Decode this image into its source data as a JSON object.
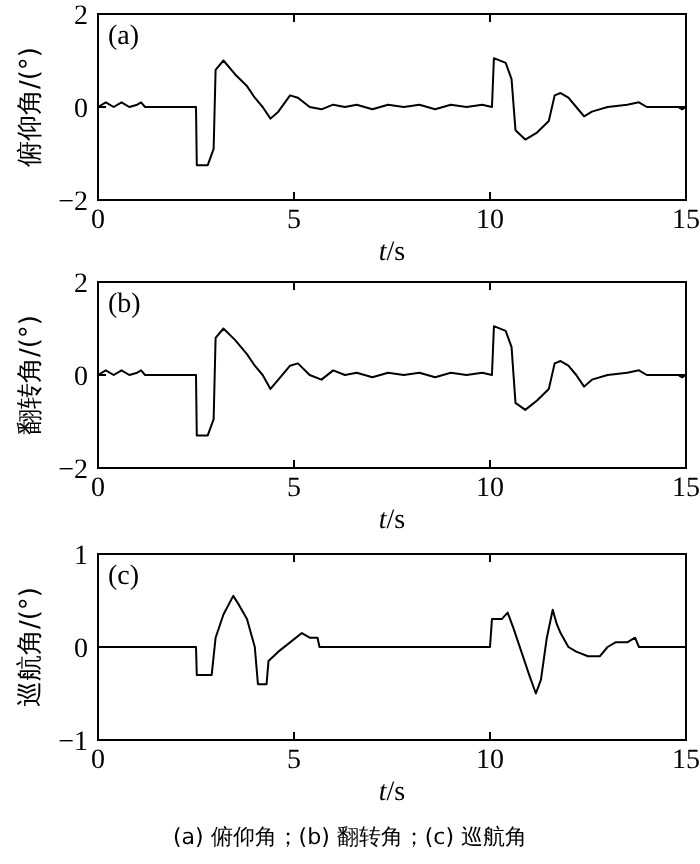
{
  "chart_data": [
    {
      "type": "line",
      "xlabel": "t/s",
      "ylabel": "俯仰角/(°)",
      "annotations": [
        "(a)"
      ],
      "xlim": [
        0,
        15
      ],
      "xticks": [
        0,
        5,
        10,
        15
      ],
      "ylim": [
        -2,
        2
      ],
      "yticks": [
        -2,
        0,
        2
      ],
      "grid": false,
      "series": [
        {
          "color": "#000000",
          "x": [
            0,
            0.2,
            0.4,
            0.6,
            0.8,
            1.0,
            1.1,
            1.2,
            2.5,
            2.52,
            2.8,
            2.95,
            3.0,
            3.2,
            3.5,
            3.8,
            4.0,
            4.2,
            4.4,
            4.6,
            4.9,
            5.1,
            5.4,
            5.7,
            6.0,
            6.3,
            6.6,
            7.0,
            7.4,
            7.8,
            8.2,
            8.6,
            9.0,
            9.4,
            9.8,
            10.05,
            10.1,
            10.4,
            10.55,
            10.65,
            10.9,
            11.2,
            11.5,
            11.65,
            11.8,
            12.0,
            12.2,
            12.4,
            12.6,
            13.0,
            13.5,
            13.8,
            14.0,
            14.8,
            14.9,
            15
          ],
          "values": [
            0,
            0.1,
            0,
            0.1,
            0,
            0.05,
            0.1,
            0,
            0,
            -1.25,
            -1.25,
            -0.9,
            0.8,
            1.0,
            0.7,
            0.45,
            0.2,
            0,
            -0.25,
            -0.1,
            0.25,
            0.2,
            0,
            -0.05,
            0.05,
            0,
            0.05,
            -0.05,
            0.05,
            0,
            0.05,
            -0.05,
            0.05,
            0,
            0.05,
            0,
            1.05,
            0.95,
            0.6,
            -0.5,
            -0.7,
            -0.55,
            -0.3,
            0.25,
            0.3,
            0.2,
            0,
            -0.2,
            -0.1,
            0,
            0.05,
            0.1,
            0,
            0,
            -0.05,
            0
          ]
        }
      ]
    },
    {
      "type": "line",
      "xlabel": "t/s",
      "ylabel": "翻转角/(°)",
      "annotations": [
        "(b)"
      ],
      "xlim": [
        0,
        15
      ],
      "xticks": [
        0,
        5,
        10,
        15
      ],
      "ylim": [
        -2,
        2
      ],
      "yticks": [
        -2,
        0,
        2
      ],
      "grid": false,
      "series": [
        {
          "color": "#000000",
          "x": [
            0,
            0.2,
            0.4,
            0.6,
            0.8,
            1.0,
            1.1,
            1.2,
            2.5,
            2.52,
            2.8,
            2.95,
            3.0,
            3.2,
            3.5,
            3.8,
            4.0,
            4.2,
            4.4,
            4.6,
            4.9,
            5.1,
            5.4,
            5.7,
            6.0,
            6.3,
            6.6,
            7.0,
            7.4,
            7.8,
            8.2,
            8.6,
            9.0,
            9.4,
            9.8,
            10.05,
            10.1,
            10.4,
            10.55,
            10.65,
            10.9,
            11.2,
            11.5,
            11.65,
            11.8,
            12.0,
            12.2,
            12.4,
            12.6,
            13.0,
            13.5,
            13.8,
            14.0,
            14.8,
            14.9,
            15
          ],
          "values": [
            0,
            0.1,
            0,
            0.1,
            0,
            0.05,
            0.1,
            0,
            0,
            -1.3,
            -1.3,
            -0.95,
            0.8,
            1.0,
            0.75,
            0.45,
            0.2,
            0,
            -0.3,
            -0.1,
            0.2,
            0.25,
            0,
            -0.1,
            0.1,
            0,
            0.05,
            -0.05,
            0.05,
            0,
            0.05,
            -0.05,
            0.05,
            0,
            0.05,
            0,
            1.05,
            0.95,
            0.6,
            -0.6,
            -0.75,
            -0.55,
            -0.3,
            0.25,
            0.3,
            0.2,
            0,
            -0.25,
            -0.1,
            0,
            0.05,
            0.1,
            0,
            0,
            -0.05,
            0
          ]
        }
      ]
    },
    {
      "type": "line",
      "xlabel": "t/s",
      "ylabel": "巡航角/(°)",
      "annotations": [
        "(c)",
        "(a) 俯仰角；(b) 翻转角；(c) 巡航角"
      ],
      "xlim": [
        0,
        15
      ],
      "xticks": [
        0,
        5,
        10,
        15
      ],
      "ylim": [
        -1,
        1
      ],
      "yticks": [
        -1,
        0,
        1
      ],
      "grid": false,
      "series": [
        {
          "color": "#000000",
          "x": [
            0,
            2.5,
            2.52,
            2.9,
            3.0,
            3.2,
            3.45,
            3.6,
            3.8,
            4.0,
            4.08,
            4.3,
            4.35,
            4.6,
            4.9,
            5.2,
            5.4,
            5.6,
            5.65,
            10.0,
            10.05,
            10.3,
            10.45,
            10.6,
            10.8,
            11.0,
            11.17,
            11.3,
            11.45,
            11.6,
            11.7,
            11.8,
            12.0,
            12.2,
            12.5,
            12.8,
            13.0,
            13.2,
            13.5,
            13.7,
            13.8,
            15
          ],
          "values": [
            0,
            0,
            -0.3,
            -0.3,
            0.1,
            0.35,
            0.55,
            0.45,
            0.3,
            0,
            -0.4,
            -0.4,
            -0.15,
            -0.05,
            0.05,
            0.15,
            0.1,
            0.1,
            0,
            0,
            0.3,
            0.3,
            0.37,
            0.2,
            -0.05,
            -0.3,
            -0.5,
            -0.35,
            0.1,
            0.4,
            0.25,
            0.15,
            0,
            -0.05,
            -0.1,
            -0.1,
            0,
            0.05,
            0.05,
            0.1,
            0,
            0
          ]
        }
      ]
    }
  ]
}
